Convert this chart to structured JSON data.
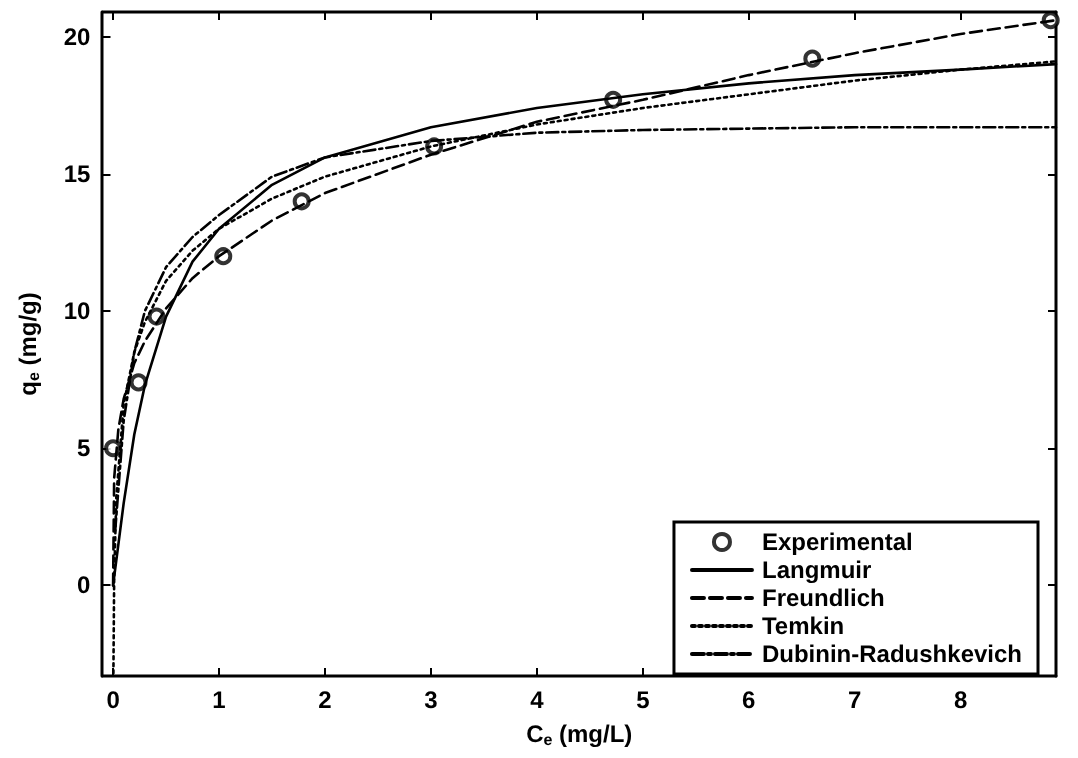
{
  "chart_data": {
    "type": "line",
    "xlabel": "C$_{e}$ (mg/L)",
    "ylabel": "q$_{e}$ (mg/g)",
    "xlim": [
      -0.1,
      8.9
    ],
    "ylim": [
      -3.3,
      20.9
    ],
    "xticks": [
      0,
      1,
      2,
      3,
      4,
      5,
      6,
      7,
      8
    ],
    "yticks": [
      0,
      5,
      10,
      15,
      20
    ],
    "grid": false,
    "legend": "bottom right",
    "series": [
      {
        "name": "Experimental",
        "type": "scatter",
        "marker": "circle",
        "color": "#000000",
        "x": [
          0,
          0.24,
          0.41,
          1.04,
          1.78,
          3.03,
          4.72,
          6.6,
          8.85
        ],
        "values": [
          5,
          7.4,
          9.8,
          12,
          14,
          16,
          17.7,
          19.2,
          20.6
        ]
      },
      {
        "name": "Langmuir",
        "marker": "none",
        "line_style": "solid",
        "color": "#000000",
        "x": [
          0,
          0.1,
          0.2,
          0.3,
          0.5,
          0.75,
          1,
          1.5,
          2,
          3,
          4,
          5,
          6,
          7,
          8,
          8.9
        ],
        "values": [
          0,
          3,
          5.5,
          7.3,
          9.8,
          11.8,
          13,
          14.6,
          15.6,
          16.7,
          17.4,
          17.9,
          18.3,
          18.6,
          18.8,
          19
        ]
      },
      {
        "name": "Freundlich",
        "marker": "none",
        "line_style": "dashed",
        "color": "#000000",
        "x": [
          0,
          0.01,
          0.05,
          0.1,
          0.2,
          0.3,
          0.5,
          0.75,
          1,
          1.5,
          2,
          3,
          4,
          5,
          6,
          7,
          8,
          8.9
        ],
        "values": [
          0,
          3.9,
          5.7,
          6.8,
          8.1,
          8.9,
          10.1,
          11.2,
          12,
          13.3,
          14.3,
          15.7,
          16.9,
          17.7,
          18.6,
          19.4,
          20.1,
          20.6
        ]
      },
      {
        "name": "Temkin",
        "marker": "none",
        "line_style": "dotted",
        "color": "#000000",
        "x": [
          0.003,
          0.01,
          0.03,
          0.1,
          0.2,
          0.3,
          0.5,
          0.75,
          1,
          1.5,
          2,
          3,
          4,
          5,
          6,
          7,
          8,
          8.9
        ],
        "values": [
          -3.2,
          0.2,
          3.2,
          6.6,
          8.5,
          9.6,
          11.1,
          12.2,
          13,
          14.1,
          14.9,
          16,
          16.8,
          17.4,
          17.9,
          18.4,
          18.8,
          19.1
        ]
      },
      {
        "name": "Dubinin-Radushkevich",
        "marker": "none",
        "line_style": "dashdot",
        "color": "#000000",
        "x": [
          0.02,
          0.1,
          0.2,
          0.3,
          0.5,
          0.75,
          1,
          1.5,
          2,
          3,
          4,
          5,
          7,
          8.9
        ],
        "values": [
          2,
          6,
          8.5,
          10,
          11.6,
          12.7,
          13.5,
          14.9,
          15.6,
          16.2,
          16.5,
          16.6,
          16.7,
          16.7
        ]
      }
    ]
  }
}
